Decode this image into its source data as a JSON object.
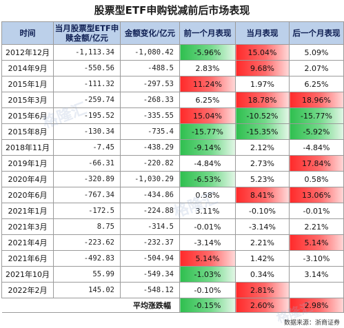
{
  "title": "股票型ETF申购锐减前后市场表现",
  "headers": [
    "时间",
    "当月股票型ETF申赎金额/亿元",
    "金额变化/亿元",
    "前一个月表现",
    "当月表现",
    "后一个月表现"
  ],
  "rows": [
    {
      "date": "2012年12月",
      "amount": "-1,113.34",
      "change": "-1,080.42",
      "prev": {
        "v": "-5.96%",
        "c": "green"
      },
      "cur": {
        "v": "15.04%",
        "c": "red"
      },
      "next": {
        "v": "5.09%",
        "c": ""
      }
    },
    {
      "date": "2014年9月",
      "amount": "-550.56",
      "change": "-488.5",
      "prev": {
        "v": "2.83%",
        "c": ""
      },
      "cur": {
        "v": "9.68%",
        "c": "red"
      },
      "next": {
        "v": "2.07%",
        "c": ""
      }
    },
    {
      "date": "2015年1月",
      "amount": "-111.32",
      "change": "-297.53",
      "prev": {
        "v": "11.24%",
        "c": "red"
      },
      "cur": {
        "v": "1.97%",
        "c": ""
      },
      "next": {
        "v": "6.25%",
        "c": ""
      }
    },
    {
      "date": "2015年3月",
      "amount": "-259.74",
      "change": "-268.33",
      "prev": {
        "v": "6.25%",
        "c": ""
      },
      "cur": {
        "v": "18.78%",
        "c": "red"
      },
      "next": {
        "v": "18.96%",
        "c": "red"
      }
    },
    {
      "date": "2015年6月",
      "amount": "-195.52",
      "change": "-335.55",
      "prev": {
        "v": "15.04%",
        "c": "red"
      },
      "cur": {
        "v": "-10.52%",
        "c": "green"
      },
      "next": {
        "v": "-15.77%",
        "c": "green"
      }
    },
    {
      "date": "2015年8月",
      "amount": "-130.34",
      "change": "-735.4",
      "prev": {
        "v": "-15.77%",
        "c": "green"
      },
      "cur": {
        "v": "-15.35%",
        "c": "green"
      },
      "next": {
        "v": "-5.92%",
        "c": "green"
      }
    },
    {
      "date": "2018年11月",
      "amount": "-7.45",
      "change": "-438.29",
      "prev": {
        "v": "-9.14%",
        "c": "green"
      },
      "cur": {
        "v": "2.12%",
        "c": ""
      },
      "next": {
        "v": "-4.84%",
        "c": ""
      }
    },
    {
      "date": "2019年1月",
      "amount": "-66.31",
      "change": "-220.82",
      "prev": {
        "v": "-4.84%",
        "c": ""
      },
      "cur": {
        "v": "2.73%",
        "c": ""
      },
      "next": {
        "v": "17.84%",
        "c": "red"
      }
    },
    {
      "date": "2020年4月",
      "amount": "-320.89",
      "change": "-1,030.29",
      "prev": {
        "v": "-6.53%",
        "c": "green"
      },
      "cur": {
        "v": "5.23%",
        "c": ""
      },
      "next": {
        "v": "0.58%",
        "c": ""
      }
    },
    {
      "date": "2020年6月",
      "amount": "-767.34",
      "change": "-434.86",
      "prev": {
        "v": "0.58%",
        "c": ""
      },
      "cur": {
        "v": "8.41%",
        "c": "red"
      },
      "next": {
        "v": "13.06%",
        "c": "red"
      }
    },
    {
      "date": "2021年1月",
      "amount": "-172.5",
      "change": "-224.88",
      "prev": {
        "v": "3.11%",
        "c": ""
      },
      "cur": {
        "v": "-0.10%",
        "c": ""
      },
      "next": {
        "v": "-0.01%",
        "c": ""
      }
    },
    {
      "date": "2021年3月",
      "amount": "8.75",
      "change": "-314.5",
      "prev": {
        "v": "-0.01%",
        "c": ""
      },
      "cur": {
        "v": "-3.14%",
        "c": ""
      },
      "next": {
        "v": "2.21%",
        "c": ""
      }
    },
    {
      "date": "2021年4月",
      "amount": "-223.62",
      "change": "-232.37",
      "prev": {
        "v": "-3.14%",
        "c": ""
      },
      "cur": {
        "v": "2.21%",
        "c": ""
      },
      "next": {
        "v": "5.14%",
        "c": "red"
      }
    },
    {
      "date": "2021年6月",
      "amount": "-492.83",
      "change": "-504.94",
      "prev": {
        "v": "5.14%",
        "c": "red"
      },
      "cur": {
        "v": "1.42%",
        "c": ""
      },
      "next": {
        "v": "-3.10%",
        "c": ""
      }
    },
    {
      "date": "2021年10月",
      "amount": "55.99",
      "change": "-549.34",
      "prev": {
        "v": "-1.03%",
        "c": "green"
      },
      "cur": {
        "v": "0.34%",
        "c": ""
      },
      "next": {
        "v": "3.14%",
        "c": ""
      }
    },
    {
      "date": "2022年2月",
      "amount": "145.02",
      "change": "-548.12",
      "prev": {
        "v": "-0.10%",
        "c": ""
      },
      "cur": {
        "v": "2.81%",
        "c": "red"
      },
      "next": {
        "v": "",
        "c": ""
      }
    }
  ],
  "footer": {
    "label": "平均涨跌幅",
    "prev": {
      "v": "-0.15%",
      "c": "green"
    },
    "cur": {
      "v": "2.60%",
      "c": "red"
    },
    "next": {
      "v": "2.98%",
      "c": "red"
    }
  },
  "source": "数据来源：浙商证券",
  "watermark": "格隆汇"
}
